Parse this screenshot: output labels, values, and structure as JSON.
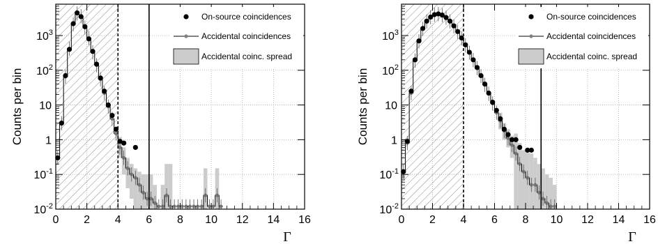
{
  "chart_data": [
    {
      "type": "histogram",
      "xlabel": "Γ",
      "ylabel": "Counts per bin",
      "xlim": [
        0,
        16
      ],
      "ylim": [
        0.01,
        8000
      ],
      "y_scale": "log",
      "bin_width": 0.25,
      "x_ticks": [
        "0",
        "2",
        "4",
        "6",
        "8",
        "10",
        "12",
        "14",
        "16"
      ],
      "y_ticks": [
        "10^-2",
        "10^-1",
        "1",
        "10",
        "10^2",
        "10^3"
      ],
      "grid": true,
      "legend": [
        "On-source coincidences",
        "Accidental coincidences",
        "Accidental coinc. spread"
      ],
      "legend_position": "top-right",
      "hatched_region": [
        0,
        4
      ],
      "dashed_line_x": 4,
      "solid_line_x": 6,
      "on_source_points": [
        {
          "x": 0.125,
          "y": 0.3
        },
        {
          "x": 0.375,
          "y": 3
        },
        {
          "x": 0.625,
          "y": 70
        },
        {
          "x": 0.875,
          "y": 400
        },
        {
          "x": 1.125,
          "y": 2200
        },
        {
          "x": 1.375,
          "y": 4500
        },
        {
          "x": 1.625,
          "y": 3500
        },
        {
          "x": 1.875,
          "y": 1800
        },
        {
          "x": 2.125,
          "y": 800
        },
        {
          "x": 2.375,
          "y": 350
        },
        {
          "x": 2.625,
          "y": 150
        },
        {
          "x": 2.875,
          "y": 60
        },
        {
          "x": 3.125,
          "y": 25
        },
        {
          "x": 3.375,
          "y": 10
        },
        {
          "x": 3.625,
          "y": 5
        },
        {
          "x": 3.875,
          "y": 2
        },
        {
          "x": 4.125,
          "y": 0.9
        }
      ],
      "accidental_points": [
        {
          "x": 0.125,
          "y": 0.3
        },
        {
          "x": 0.375,
          "y": 3
        },
        {
          "x": 0.625,
          "y": 65
        },
        {
          "x": 0.875,
          "y": 420
        },
        {
          "x": 1.125,
          "y": 2100
        },
        {
          "x": 1.375,
          "y": 4300
        },
        {
          "x": 1.625,
          "y": 3600
        },
        {
          "x": 1.875,
          "y": 1700
        },
        {
          "x": 2.125,
          "y": 850
        },
        {
          "x": 2.375,
          "y": 330
        },
        {
          "x": 2.625,
          "y": 140
        },
        {
          "x": 2.875,
          "y": 55
        },
        {
          "x": 3.125,
          "y": 22
        },
        {
          "x": 3.375,
          "y": 9
        },
        {
          "x": 3.625,
          "y": 4
        },
        {
          "x": 3.875,
          "y": 1.5
        },
        {
          "x": 4.125,
          "y": 0.6
        },
        {
          "x": 4.375,
          "y": 0.3
        },
        {
          "x": 4.625,
          "y": 0.15
        },
        {
          "x": 4.875,
          "y": 0.1
        },
        {
          "x": 5.125,
          "y": 0.08
        },
        {
          "x": 5.375,
          "y": 0.05
        },
        {
          "x": 5.625,
          "y": 0.03
        },
        {
          "x": 5.875,
          "y": 0.02
        },
        {
          "x": 6.125,
          "y": 0.02
        },
        {
          "x": 6.375,
          "y": 0.015
        },
        {
          "x": 6.625,
          "y": 0.012
        },
        {
          "x": 6.875,
          "y": 0.012
        },
        {
          "x": 7.125,
          "y": 0.025
        },
        {
          "x": 7.375,
          "y": 0.012
        },
        {
          "x": 7.625,
          "y": 0.012
        },
        {
          "x": 7.875,
          "y": 0.012
        },
        {
          "x": 8.125,
          "y": 0.012
        },
        {
          "x": 8.375,
          "y": 0.012
        },
        {
          "x": 8.625,
          "y": 0.012
        },
        {
          "x": 8.875,
          "y": 0.012
        },
        {
          "x": 9.125,
          "y": 0.012
        },
        {
          "x": 9.375,
          "y": 0.012
        },
        {
          "x": 9.625,
          "y": 0.025
        },
        {
          "x": 9.875,
          "y": 0.012
        },
        {
          "x": 10.125,
          "y": 0.012
        },
        {
          "x": 10.375,
          "y": 0.025
        },
        {
          "x": 10.625,
          "y": 0.012
        }
      ],
      "spread_bars": [
        {
          "x0": 4.0,
          "x1": 4.25,
          "low": 0.3,
          "high": 1.2
        },
        {
          "x0": 4.25,
          "x1": 4.5,
          "low": 0.1,
          "high": 0.6
        },
        {
          "x0": 4.5,
          "x1": 4.75,
          "low": 0.04,
          "high": 0.3
        },
        {
          "x0": 4.75,
          "x1": 5.0,
          "low": 0.02,
          "high": 0.2
        },
        {
          "x0": 5.0,
          "x1": 5.25,
          "low": 0.01,
          "high": 0.15
        },
        {
          "x0": 5.25,
          "x1": 5.5,
          "low": 0.01,
          "high": 0.12
        },
        {
          "x0": 5.5,
          "x1": 5.75,
          "low": 0.01,
          "high": 0.1
        },
        {
          "x0": 5.75,
          "x1": 6.0,
          "low": 0.01,
          "high": 0.1
        },
        {
          "x0": 6.0,
          "x1": 6.25,
          "low": 0.01,
          "high": 0.1
        },
        {
          "x0": 6.25,
          "x1": 6.5,
          "low": 0.01,
          "high": 0.05
        },
        {
          "x0": 6.75,
          "x1": 7.0,
          "low": 0.01,
          "high": 0.05
        },
        {
          "x0": 7.0,
          "x1": 7.25,
          "low": 0.01,
          "high": 0.2
        },
        {
          "x0": 7.25,
          "x1": 7.5,
          "low": 0.01,
          "high": 0.2
        },
        {
          "x0": 9.5,
          "x1": 9.75,
          "low": 0.01,
          "high": 0.15
        },
        {
          "x0": 10.25,
          "x1": 10.5,
          "low": 0.01,
          "high": 0.15
        }
      ],
      "on_source_points_extra": [
        {
          "x": 4.375,
          "y": 0.8
        },
        {
          "x": 5.125,
          "y": 0.6
        }
      ]
    },
    {
      "type": "histogram",
      "xlabel": "Γ",
      "ylabel": "Counts per bin",
      "xlim": [
        0,
        16
      ],
      "ylim": [
        0.01,
        8000
      ],
      "y_scale": "log",
      "bin_width": 0.25,
      "x_ticks": [
        "0",
        "2",
        "4",
        "6",
        "8",
        "10",
        "12",
        "14",
        "16"
      ],
      "y_ticks": [
        "10^-2",
        "10^-1",
        "1",
        "10",
        "10^2",
        "10^3"
      ],
      "grid": true,
      "legend": [
        "On-source coincidences",
        "Accidental coincidences",
        "Accidental coinc. spread"
      ],
      "legend_position": "top-right",
      "hatched_region": [
        0,
        4
      ],
      "dashed_line_x": 4,
      "solid_line_x": 9,
      "on_source_points": [
        {
          "x": 0.125,
          "y": 0.12
        },
        {
          "x": 0.375,
          "y": 0.9
        },
        {
          "x": 0.625,
          "y": 25
        },
        {
          "x": 0.875,
          "y": 200
        },
        {
          "x": 1.125,
          "y": 700
        },
        {
          "x": 1.375,
          "y": 1600
        },
        {
          "x": 1.625,
          "y": 2600
        },
        {
          "x": 1.875,
          "y": 3400
        },
        {
          "x": 2.125,
          "y": 4000
        },
        {
          "x": 2.375,
          "y": 4200
        },
        {
          "x": 2.625,
          "y": 3900
        },
        {
          "x": 2.875,
          "y": 3300
        },
        {
          "x": 3.125,
          "y": 2600
        },
        {
          "x": 3.375,
          "y": 1900
        },
        {
          "x": 3.625,
          "y": 1300
        },
        {
          "x": 3.875,
          "y": 850
        },
        {
          "x": 4.125,
          "y": 540
        },
        {
          "x": 4.375,
          "y": 330
        },
        {
          "x": 4.625,
          "y": 200
        },
        {
          "x": 4.875,
          "y": 120
        },
        {
          "x": 5.125,
          "y": 70
        },
        {
          "x": 5.375,
          "y": 40
        },
        {
          "x": 5.625,
          "y": 22
        },
        {
          "x": 5.875,
          "y": 12
        },
        {
          "x": 6.125,
          "y": 7
        },
        {
          "x": 6.375,
          "y": 4
        },
        {
          "x": 6.625,
          "y": 2
        },
        {
          "x": 6.875,
          "y": 1.4
        },
        {
          "x": 7.125,
          "y": 1
        },
        {
          "x": 7.375,
          "y": 1
        },
        {
          "x": 7.625,
          "y": 0.6
        },
        {
          "x": 8.125,
          "y": 0.5
        },
        {
          "x": 8.375,
          "y": 0.5
        }
      ],
      "accidental_points": [
        {
          "x": 0.125,
          "y": 0.12
        },
        {
          "x": 0.375,
          "y": 0.8
        },
        {
          "x": 0.625,
          "y": 22
        },
        {
          "x": 0.875,
          "y": 190
        },
        {
          "x": 1.125,
          "y": 680
        },
        {
          "x": 1.375,
          "y": 1550
        },
        {
          "x": 1.625,
          "y": 2550
        },
        {
          "x": 1.875,
          "y": 3350
        },
        {
          "x": 2.125,
          "y": 3950
        },
        {
          "x": 2.375,
          "y": 4150
        },
        {
          "x": 2.625,
          "y": 3850
        },
        {
          "x": 2.875,
          "y": 3250
        },
        {
          "x": 3.125,
          "y": 2550
        },
        {
          "x": 3.375,
          "y": 1850
        },
        {
          "x": 3.625,
          "y": 1280
        },
        {
          "x": 3.875,
          "y": 830
        },
        {
          "x": 4.125,
          "y": 520
        },
        {
          "x": 4.375,
          "y": 320
        },
        {
          "x": 4.625,
          "y": 195
        },
        {
          "x": 4.875,
          "y": 115
        },
        {
          "x": 5.125,
          "y": 68
        },
        {
          "x": 5.375,
          "y": 38
        },
        {
          "x": 5.625,
          "y": 21
        },
        {
          "x": 5.875,
          "y": 11
        },
        {
          "x": 6.125,
          "y": 6
        },
        {
          "x": 6.375,
          "y": 3.5
        },
        {
          "x": 6.625,
          "y": 1.8
        },
        {
          "x": 6.875,
          "y": 1.1
        },
        {
          "x": 7.125,
          "y": 0.7
        },
        {
          "x": 7.375,
          "y": 0.4
        },
        {
          "x": 7.625,
          "y": 0.2
        },
        {
          "x": 7.875,
          "y": 0.12
        },
        {
          "x": 8.125,
          "y": 0.08
        },
        {
          "x": 8.375,
          "y": 0.05
        },
        {
          "x": 8.625,
          "y": 0.05
        },
        {
          "x": 8.875,
          "y": 0.03
        },
        {
          "x": 9.125,
          "y": 0.02
        },
        {
          "x": 9.375,
          "y": 0.015
        },
        {
          "x": 9.625,
          "y": 0.012
        },
        {
          "x": 9.875,
          "y": 0.012
        }
      ],
      "spread_bars": [
        {
          "x0": 6.25,
          "x1": 6.5,
          "low": 2,
          "high": 6
        },
        {
          "x0": 6.5,
          "x1": 6.75,
          "low": 1,
          "high": 3
        },
        {
          "x0": 6.75,
          "x1": 7.0,
          "low": 0.6,
          "high": 2
        },
        {
          "x0": 7.0,
          "x1": 7.25,
          "low": 0.3,
          "high": 1.3
        },
        {
          "x0": 7.25,
          "x1": 7.5,
          "low": 0.01,
          "high": 1.5
        },
        {
          "x0": 7.5,
          "x1": 7.75,
          "low": 0.01,
          "high": 0.8
        },
        {
          "x0": 7.75,
          "x1": 8.0,
          "low": 0.01,
          "high": 0.5
        },
        {
          "x0": 8.0,
          "x1": 8.25,
          "low": 0.01,
          "high": 0.5
        },
        {
          "x0": 8.25,
          "x1": 8.5,
          "low": 0.01,
          "high": 0.4
        },
        {
          "x0": 8.5,
          "x1": 8.75,
          "low": 0.01,
          "high": 0.3
        },
        {
          "x0": 8.75,
          "x1": 9.0,
          "low": 0.01,
          "high": 0.2
        },
        {
          "x0": 9.0,
          "x1": 9.25,
          "low": 0.01,
          "high": 0.15
        },
        {
          "x0": 9.25,
          "x1": 9.5,
          "low": 0.01,
          "high": 0.1
        },
        {
          "x0": 9.5,
          "x1": 9.75,
          "low": 0.01,
          "high": 0.08
        },
        {
          "x0": 9.75,
          "x1": 10.0,
          "low": 0.01,
          "high": 0.05
        }
      ],
      "on_source_points_extra": []
    }
  ]
}
